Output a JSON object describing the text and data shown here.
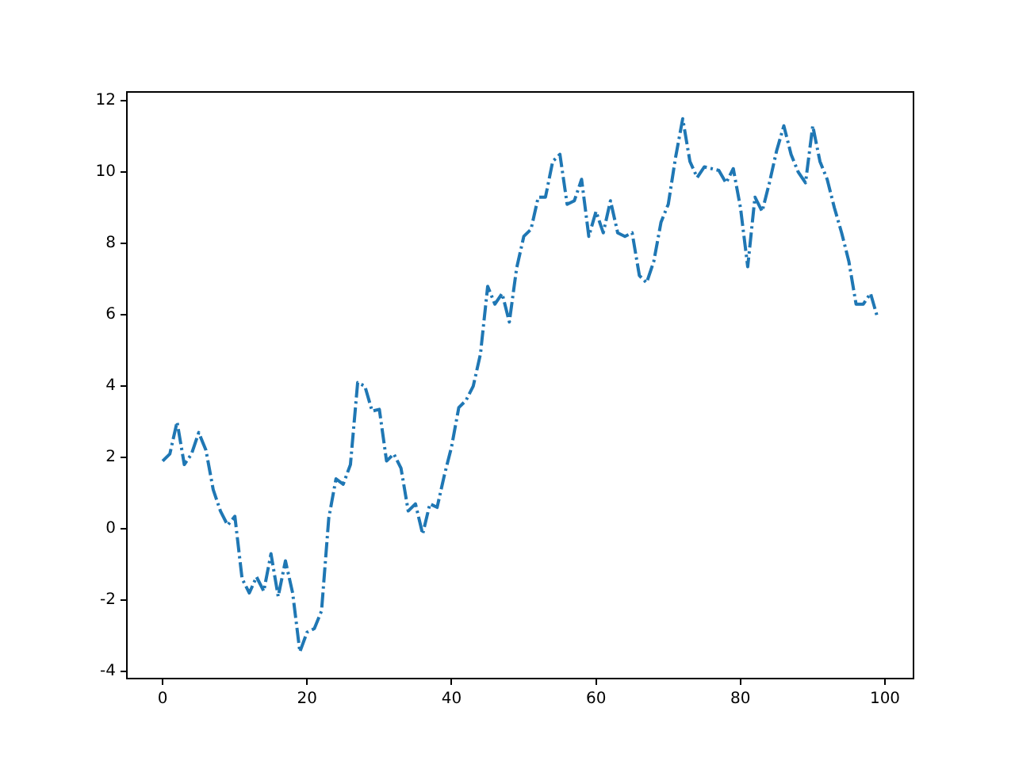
{
  "chart_data": {
    "type": "line",
    "x": [
      0,
      1,
      2,
      3,
      4,
      5,
      6,
      7,
      8,
      9,
      10,
      11,
      12,
      13,
      14,
      15,
      16,
      17,
      18,
      19,
      20,
      21,
      22,
      23,
      24,
      25,
      26,
      27,
      28,
      29,
      30,
      31,
      32,
      33,
      34,
      35,
      36,
      37,
      38,
      39,
      40,
      41,
      42,
      43,
      44,
      45,
      46,
      47,
      48,
      49,
      50,
      51,
      52,
      53,
      54,
      55,
      56,
      57,
      58,
      59,
      60,
      61,
      62,
      63,
      64,
      65,
      66,
      67,
      68,
      69,
      70,
      71,
      72,
      73,
      74,
      75,
      76,
      77,
      78,
      79,
      80,
      81,
      82,
      83,
      84,
      85,
      86,
      87,
      88,
      89,
      90,
      91,
      92,
      93,
      94,
      95,
      96,
      97,
      98,
      99
    ],
    "series": [
      {
        "color": "#1f77b4",
        "values": [
          1.9,
          2.1,
          3.0,
          1.8,
          2.1,
          2.7,
          2.2,
          1.1,
          0.5,
          0.1,
          0.35,
          -1.4,
          -1.8,
          -1.35,
          -1.75,
          -0.7,
          -1.9,
          -0.9,
          -1.8,
          -3.45,
          -2.9,
          -2.8,
          -2.3,
          0.3,
          1.4,
          1.25,
          1.8,
          4.1,
          4.0,
          3.3,
          3.35,
          1.9,
          2.1,
          1.7,
          0.5,
          0.7,
          -0.15,
          0.7,
          0.6,
          1.5,
          2.3,
          3.4,
          3.6,
          4.0,
          4.9,
          6.8,
          6.3,
          6.6,
          5.8,
          7.3,
          8.2,
          8.4,
          9.3,
          9.3,
          10.3,
          10.5,
          9.1,
          9.2,
          9.8,
          8.2,
          8.9,
          8.3,
          9.2,
          8.3,
          8.2,
          8.3,
          7.1,
          6.9,
          7.5,
          8.6,
          9.1,
          10.4,
          11.5,
          10.3,
          9.85,
          10.15,
          10.1,
          10.05,
          9.7,
          10.1,
          9.0,
          7.35,
          9.3,
          8.9,
          9.7,
          10.6,
          11.3,
          10.5,
          10.0,
          9.7,
          11.3,
          10.3,
          9.8,
          9.0,
          8.3,
          7.5,
          6.3,
          6.3,
          6.6,
          5.9
        ]
      }
    ],
    "xlim": [
      -4.95,
      103.95
    ],
    "xticks": [
      0,
      20,
      40,
      60,
      80,
      100
    ],
    "ylim": [
      -4.2,
      12.25
    ],
    "yticks": [
      -4,
      -2,
      0,
      2,
      4,
      6,
      8,
      10,
      12
    ],
    "grid": false,
    "legend": false,
    "marker": "none",
    "line_style": "dashdot"
  }
}
